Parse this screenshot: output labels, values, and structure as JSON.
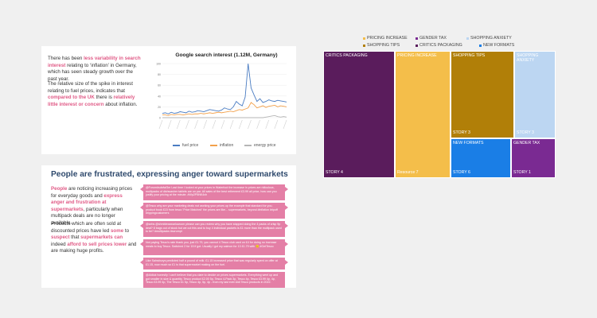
{
  "search_card": {
    "p1_a": "There has been ",
    "p1_hl": "less variability in search interest",
    "p1_b": " relating to ‘inflation’ in Germany, which has seen steady growth over the past year.",
    "p2_a": "The relative size of the spike in interest relating to fuel prices, indicates that ",
    "p2_hl1": "compared to the UK",
    "p2_b": " there is ",
    "p2_hl2": "relatively little interest or concern",
    "p2_c": " about inflation."
  },
  "chart_data": {
    "type": "line",
    "title": "Google search interest (1.12M, Germany)",
    "ylim": [
      0,
      100
    ],
    "y_ticks": [
      "100",
      "80",
      "60",
      "40",
      "20",
      "0"
    ],
    "series": [
      {
        "name": "fuel price",
        "color": "#4a7cc2",
        "values": [
          8,
          9,
          7,
          10,
          8,
          9,
          11,
          10,
          9,
          12,
          10,
          11,
          13,
          12,
          11,
          13,
          15,
          14,
          13,
          12,
          14,
          18,
          16,
          15,
          20,
          30,
          25,
          22,
          38,
          100,
          55,
          42,
          30,
          35,
          28,
          30,
          33,
          31,
          30,
          32,
          31,
          30,
          29
        ]
      },
      {
        "name": "inflation",
        "color": "#f2a04b",
        "values": [
          5,
          5,
          4,
          6,
          5,
          6,
          6,
          5,
          6,
          7,
          6,
          7,
          7,
          8,
          7,
          8,
          9,
          8,
          9,
          10,
          9,
          10,
          11,
          12,
          11,
          13,
          15,
          14,
          16,
          18,
          28,
          24,
          18,
          20,
          22,
          19,
          21,
          22,
          23,
          20,
          22,
          21,
          20
        ]
      },
      {
        "name": "energy price",
        "color": "#b5b5b5",
        "values": [
          0,
          0,
          0,
          0,
          0,
          0,
          0,
          0,
          0,
          0,
          0,
          0,
          0,
          0,
          0,
          0,
          0,
          0,
          0,
          0,
          0,
          0,
          0,
          0,
          0,
          0,
          0,
          0,
          0,
          0,
          0,
          0,
          0,
          0,
          0,
          1,
          2,
          3,
          4,
          2,
          1,
          2,
          1
        ]
      }
    ]
  },
  "frustration": {
    "title": "People are frustrated, expressing anger toward supermarkets",
    "p1_hl1": "People",
    "p1_a": " are noticing increasing prices for everyday goods and ",
    "p1_hl2": "express anger and frustration at supermarkets",
    "p1_b": ", particularly when multipack deals are no longer available.",
    "p2_a": "Products which are often sold at discounted prices have led ",
    "p2_hl1": "some",
    "p2_b": " to ",
    "p2_hl2": "suspect",
    "p2_c": " that ",
    "p2_hl3": "supermarkets can",
    "p2_d": " indeed ",
    "p2_hl4": "afford to sell prices lower",
    "p2_e": " and are making huge profits.",
    "bubbles": [
      "@Forum#sdsfwf3er Last time I looked at your prices in Waterfoot the increase in prices are ridiculous, multipacks of dishwasher tablets are on par. All sales of the best retirement £3.99 all price, how can you justify your pricing at the minute. #Wp2P8NK4xh",
      "@Tesco why are your marketing deals not working your prices up the example that standard for you. product book £15 from tesco 'Price Matched' the prices are like... supermarkets, beyond #inflation #ripoff #rippingcustomers",
      "@sebs @shmblexawarlowcom please can you review why you have stopped doing the 4 packs of crisp 9p deal? 8 bags out of stock but we cut this and to buy 4 individual packets is £1 more than the multipack used to be? #multipacks #scrumpt",
      "Not paying Tesco's rate thank you, just £1.79, you cannot 4 Tesco club card on £4 for doing no increase meals to buy Tesco. Switched 2 for 15 if got. Usually I got my salmon for 13 £1.79 with 🙂 #GetTesco",
      "Like Sainsburys predicted half a pound of milk. £1.15 increased price that was regularly spent on offer at £1.15, now much so £1 is that supermarket making on the fuel.",
      "@Aldiuk honestly I can't believe that you dare to decide on prices supermarkets. Everything went up and got smaller in size & quantity. Tesco product £2.00 5p, Tesco 4-Pack 3p, Tesco 4p, Tesco £3.99 4p, 4p, Tesco £3.99 4p, The Tesco £1 5p, Tesco 4p, 5p, 4p - from my last ever Aldi Tesco products in 2022."
    ]
  },
  "treemap": {
    "legend": [
      "PRICING INCREASE",
      "GENDER TAX",
      "SHOPPING ANXIETY",
      "SHOPPING TIPS",
      "CRITICS PACKAGING",
      "NEW FORMATS"
    ],
    "colors": {
      "pricing": "#f4be4a",
      "gender": "#7a2a92",
      "anxiety": "#bcd6f2",
      "tips": "#b17f08",
      "critics": "#5a1c5c",
      "formats": "#1a7ee6"
    },
    "tiles": {
      "critics_label": "CRITICS PACKAGING",
      "critics_story": "STORY 4",
      "pricing_label": "PRICING INCREASE",
      "pricing_story": "Resource 7",
      "tips_label": "SHOPPING TIPS",
      "tips_story": "STORY 3",
      "anxiety_label": "SHOPPING ANXIETY",
      "anxiety_story": "STORY 3",
      "formats_label": "NEW FORMATS",
      "formats_story": "STORY 6",
      "gender_label": "GENDER TAX",
      "gender_story": "STORY 1"
    }
  }
}
